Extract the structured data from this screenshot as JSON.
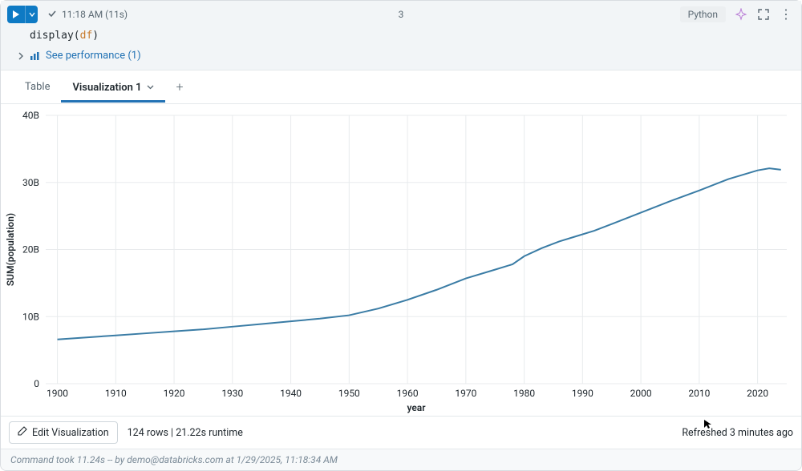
{
  "header": {
    "timestamp": "11:18 AM (11s)",
    "cell_number": "3",
    "language": "Python"
  },
  "code": {
    "function": "display",
    "open_paren": "(",
    "variable": "df",
    "close_paren": ")"
  },
  "perf": {
    "link_text": "See performance (1)"
  },
  "tabs": {
    "table": "Table",
    "viz": "Visualization 1"
  },
  "chart": {
    "type": "line",
    "xlabel": "year",
    "ylabel": "SUM(population)",
    "x_ticks": [
      1900,
      1910,
      1920,
      1930,
      1940,
      1950,
      1960,
      1970,
      1980,
      1990,
      2000,
      2010,
      2020
    ],
    "y_ticks": [
      {
        "v": 0,
        "label": "0"
      },
      {
        "v": 10,
        "label": "10B"
      },
      {
        "v": 20,
        "label": "20B"
      },
      {
        "v": 30,
        "label": "30B"
      },
      {
        "v": 40,
        "label": "40B"
      }
    ],
    "xlim": [
      1898,
      2025
    ],
    "ylim": [
      0,
      40
    ],
    "series": [
      {
        "x": 1900,
        "y": 6.6
      },
      {
        "x": 1905,
        "y": 6.9
      },
      {
        "x": 1910,
        "y": 7.2
      },
      {
        "x": 1915,
        "y": 7.5
      },
      {
        "x": 1920,
        "y": 7.8
      },
      {
        "x": 1925,
        "y": 8.1
      },
      {
        "x": 1930,
        "y": 8.5
      },
      {
        "x": 1935,
        "y": 8.9
      },
      {
        "x": 1940,
        "y": 9.3
      },
      {
        "x": 1945,
        "y": 9.7
      },
      {
        "x": 1950,
        "y": 10.2
      },
      {
        "x": 1955,
        "y": 11.2
      },
      {
        "x": 1960,
        "y": 12.5
      },
      {
        "x": 1965,
        "y": 14.0
      },
      {
        "x": 1970,
        "y": 15.7
      },
      {
        "x": 1975,
        "y": 17.0
      },
      {
        "x": 1978,
        "y": 17.8
      },
      {
        "x": 1980,
        "y": 19.0
      },
      {
        "x": 1983,
        "y": 20.2
      },
      {
        "x": 1986,
        "y": 21.2
      },
      {
        "x": 1989,
        "y": 22.0
      },
      {
        "x": 1992,
        "y": 22.8
      },
      {
        "x": 1995,
        "y": 23.8
      },
      {
        "x": 2000,
        "y": 25.5
      },
      {
        "x": 2005,
        "y": 27.2
      },
      {
        "x": 2010,
        "y": 28.8
      },
      {
        "x": 2015,
        "y": 30.5
      },
      {
        "x": 2020,
        "y": 31.8
      },
      {
        "x": 2022,
        "y": 32.1
      },
      {
        "x": 2024,
        "y": 31.9
      }
    ],
    "line_color": "#3a7ca5",
    "grid_color": "#e8ebed",
    "background_color": "#ffffff",
    "tick_fontsize": 12
  },
  "footer": {
    "edit_viz": "Edit Visualization",
    "rows": "124 rows",
    "sep": "  |  ",
    "runtime": "21.22s runtime",
    "refreshed": "Refreshed 3 minutes ago"
  },
  "status": "Command took 11.24s -- by demo@databricks.com at 1/29/2025, 11:18:34 AM"
}
